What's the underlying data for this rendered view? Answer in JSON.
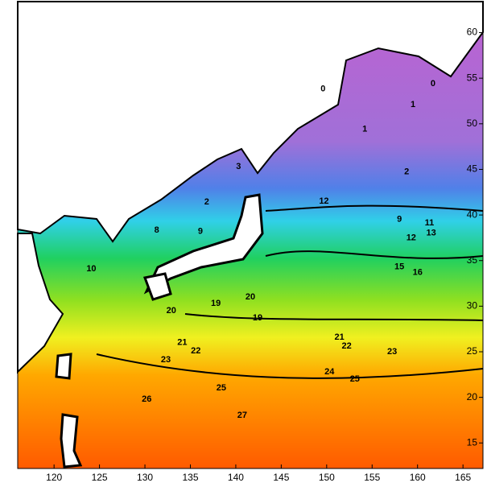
{
  "chart_data": {
    "type": "contour",
    "xlim": [
      116,
      167.2
    ],
    "ylim": [
      12.2,
      63.4
    ],
    "xticks": [
      120,
      125,
      130,
      135,
      140,
      145,
      150,
      155,
      160,
      165
    ],
    "yticks": [
      15,
      20,
      25,
      30,
      35,
      40,
      45,
      50,
      55,
      60
    ],
    "contour_labels": [
      {
        "level": 3,
        "x": 140.3,
        "y": 45.3
      },
      {
        "level": 2,
        "x": 136.8,
        "y": 41.4
      },
      {
        "level": 1,
        "x": 154.2,
        "y": 49.4
      },
      {
        "level": 1,
        "x": 159.5,
        "y": 52.1
      },
      {
        "level": 0,
        "x": 149.6,
        "y": 53.8
      },
      {
        "level": 0,
        "x": 161.7,
        "y": 54.4
      },
      {
        "level": 2,
        "x": 158.8,
        "y": 44.7
      },
      {
        "level": 12,
        "x": 149.7,
        "y": 41.5
      },
      {
        "level": 9,
        "x": 136.1,
        "y": 38.2
      },
      {
        "level": 8,
        "x": 131.3,
        "y": 38.3
      },
      {
        "level": 9,
        "x": 158,
        "y": 39.5
      },
      {
        "level": 12,
        "x": 159.3,
        "y": 37.5
      },
      {
        "level": 13,
        "x": 161.5,
        "y": 38
      },
      {
        "level": 11,
        "x": 161.3,
        "y": 39.1
      },
      {
        "level": 15,
        "x": 158,
        "y": 34.3
      },
      {
        "level": 16,
        "x": 160,
        "y": 33.7
      },
      {
        "level": 10,
        "x": 124.1,
        "y": 34.1
      },
      {
        "level": 19,
        "x": 137.8,
        "y": 30.3
      },
      {
        "level": 20,
        "x": 141.6,
        "y": 31
      },
      {
        "level": 19,
        "x": 142.4,
        "y": 28.7
      },
      {
        "level": 20,
        "x": 132.9,
        "y": 29.5
      },
      {
        "level": 21,
        "x": 151.4,
        "y": 26.6
      },
      {
        "level": 22,
        "x": 152.2,
        "y": 25.6
      },
      {
        "level": 23,
        "x": 157.2,
        "y": 25
      },
      {
        "level": 21,
        "x": 134.1,
        "y": 26
      },
      {
        "level": 22,
        "x": 135.6,
        "y": 25.1
      },
      {
        "level": 23,
        "x": 132.3,
        "y": 24.1
      },
      {
        "level": 24,
        "x": 150.3,
        "y": 22.8
      },
      {
        "level": 25,
        "x": 153.1,
        "y": 22
      },
      {
        "level": 25,
        "x": 138.4,
        "y": 21
      },
      {
        "level": 26,
        "x": 130.2,
        "y": 19.8
      },
      {
        "level": 27,
        "x": 140.7,
        "y": 18
      }
    ]
  }
}
